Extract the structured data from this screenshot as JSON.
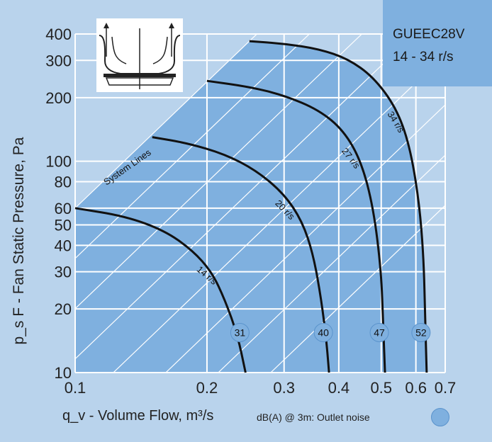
{
  "chart_data": {
    "type": "line",
    "title": "",
    "xlabel": "q_v - Volume Flow, m³/s",
    "ylabel": "p_s F - Fan Static Pressure, Pa",
    "xscale": "log",
    "yscale": "log",
    "xlim": [
      0.1,
      0.7
    ],
    "ylim": [
      10,
      400
    ],
    "x_ticks": [
      0.1,
      0.2,
      0.3,
      0.4,
      0.5,
      0.6,
      0.7
    ],
    "x_tick_labels": [
      "0.1",
      "0.2",
      "0.3",
      "0.4",
      "0.5",
      "0.6",
      "0.7"
    ],
    "y_ticks": [
      10,
      20,
      30,
      40,
      50,
      60,
      80,
      100,
      200,
      300,
      400
    ],
    "y_tick_labels": [
      "10",
      "20",
      "30",
      "40",
      "50",
      "60",
      "80",
      "100",
      "200",
      "300",
      "400"
    ],
    "grid": true,
    "series": [
      {
        "name": "14 r/s",
        "db": "31",
        "points": [
          [
            0.1,
            60
          ],
          [
            0.13,
            55
          ],
          [
            0.16,
            47
          ],
          [
            0.185,
            38
          ],
          [
            0.205,
            30
          ],
          [
            0.22,
            22
          ],
          [
            0.235,
            15
          ],
          [
            0.245,
            10
          ]
        ]
      },
      {
        "name": "20 r/s",
        "db": "40",
        "points": [
          [
            0.15,
            130
          ],
          [
            0.18,
            122
          ],
          [
            0.22,
            108
          ],
          [
            0.26,
            90
          ],
          [
            0.3,
            70
          ],
          [
            0.33,
            52
          ],
          [
            0.35,
            36
          ],
          [
            0.365,
            22
          ],
          [
            0.375,
            14
          ],
          [
            0.38,
            10
          ]
        ]
      },
      {
        "name": "27 r/s",
        "db": "47",
        "points": [
          [
            0.2,
            240
          ],
          [
            0.25,
            225
          ],
          [
            0.3,
            205
          ],
          [
            0.36,
            175
          ],
          [
            0.41,
            140
          ],
          [
            0.45,
            100
          ],
          [
            0.48,
            60
          ],
          [
            0.5,
            30
          ],
          [
            0.505,
            17
          ],
          [
            0.51,
            10
          ]
        ]
      },
      {
        "name": "34 r/s",
        "db": "52",
        "points": [
          [
            0.25,
            370
          ],
          [
            0.3,
            360
          ],
          [
            0.36,
            340
          ],
          [
            0.42,
            305
          ],
          [
            0.48,
            250
          ],
          [
            0.54,
            180
          ],
          [
            0.58,
            120
          ],
          [
            0.61,
            65
          ],
          [
            0.625,
            35
          ],
          [
            0.63,
            18
          ],
          [
            0.635,
            10
          ]
        ]
      }
    ],
    "annotations": [
      "System Lines"
    ],
    "colors": {
      "background": "#b9d3ec",
      "region": "#7fb0df",
      "grid": "#ffffff",
      "curve": "#111111",
      "badge": "#7fb0df"
    }
  },
  "header": {
    "model": "GUEEC28V",
    "speed_range": "14 - 34 r/s"
  },
  "footer": {
    "note": "dB(A) @ 3m: Outlet noise"
  }
}
